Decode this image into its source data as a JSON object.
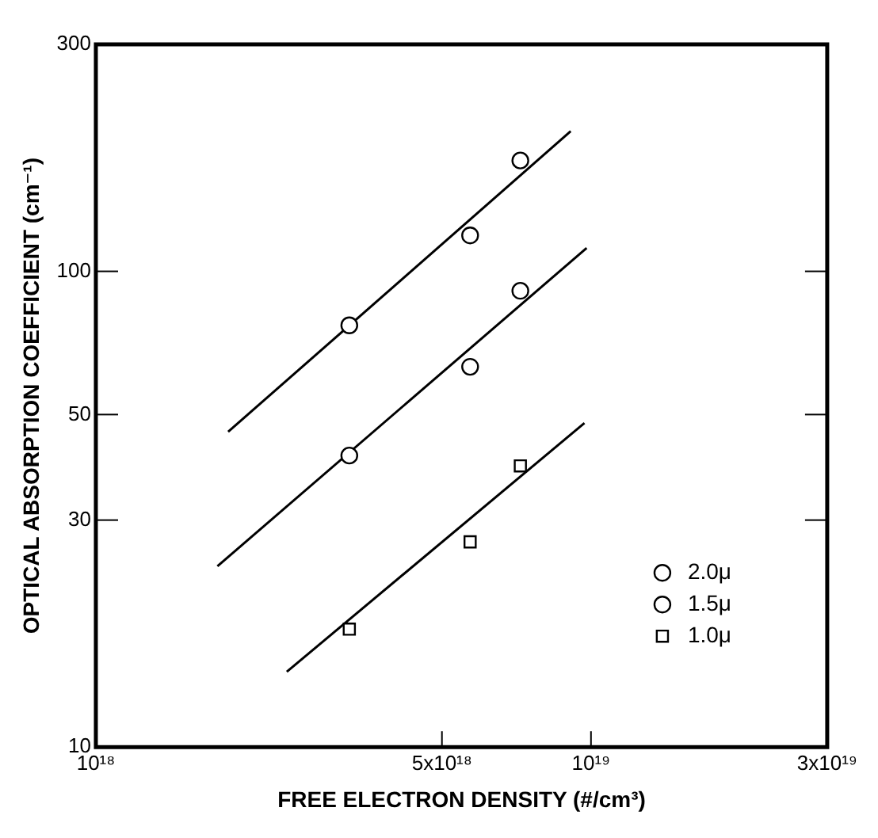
{
  "chart_data": {
    "type": "scatter",
    "xlabel": "FREE ELECTRON DENSITY (#/cm³)",
    "ylabel": "OPTICAL ABSORPTION COEFFICIENT (cm⁻¹)",
    "log": "xy",
    "grid": false,
    "legend": "bottom right",
    "xlim": [
      1e+18,
      3e+19
    ],
    "xticks": [
      {
        "value": 1e+18,
        "label": "10¹⁸"
      },
      {
        "value": 5e+18,
        "label": "5x10¹⁸"
      },
      {
        "value": 1e+19,
        "label": "10¹⁹"
      },
      {
        "value": 3e+19,
        "label": "3x10¹⁹"
      }
    ],
    "ylim": [
      10,
      300
    ],
    "yticks": [
      10,
      30,
      50,
      100,
      300
    ],
    "series": [
      {
        "name": "2.0μ",
        "type": "scatter",
        "marker": "circle",
        "color": "#000000",
        "x": [
          3.25e+18,
          5.7e+18,
          7.2e+18
        ],
        "values": [
          77,
          119,
          171
        ]
      },
      {
        "name": "1.5μ",
        "type": "scatter",
        "marker": "circle",
        "color": "#000000",
        "x": [
          3.25e+18,
          5.7e+18,
          7.2e+18
        ],
        "values": [
          41,
          63,
          91
        ]
      },
      {
        "name": "1.0μ",
        "type": "scatter",
        "marker": "square",
        "color": "#000000",
        "x": [
          3.25e+18,
          5.7e+18,
          7.2e+18
        ],
        "values": [
          17.7,
          27,
          39
        ]
      },
      {
        "type": "line",
        "marker": "none",
        "color": "#000000",
        "x": [
          1.85e+18,
          9.1e+18
        ],
        "values": [
          46,
          197
        ]
      },
      {
        "type": "line",
        "marker": "none",
        "color": "#000000",
        "x": [
          1.76e+18,
          9.8e+18
        ],
        "values": [
          24,
          112
        ]
      },
      {
        "type": "line",
        "marker": "none",
        "color": "#000000",
        "x": [
          2.43e+18,
          9.7e+18
        ],
        "values": [
          14.4,
          48
        ]
      }
    ]
  }
}
